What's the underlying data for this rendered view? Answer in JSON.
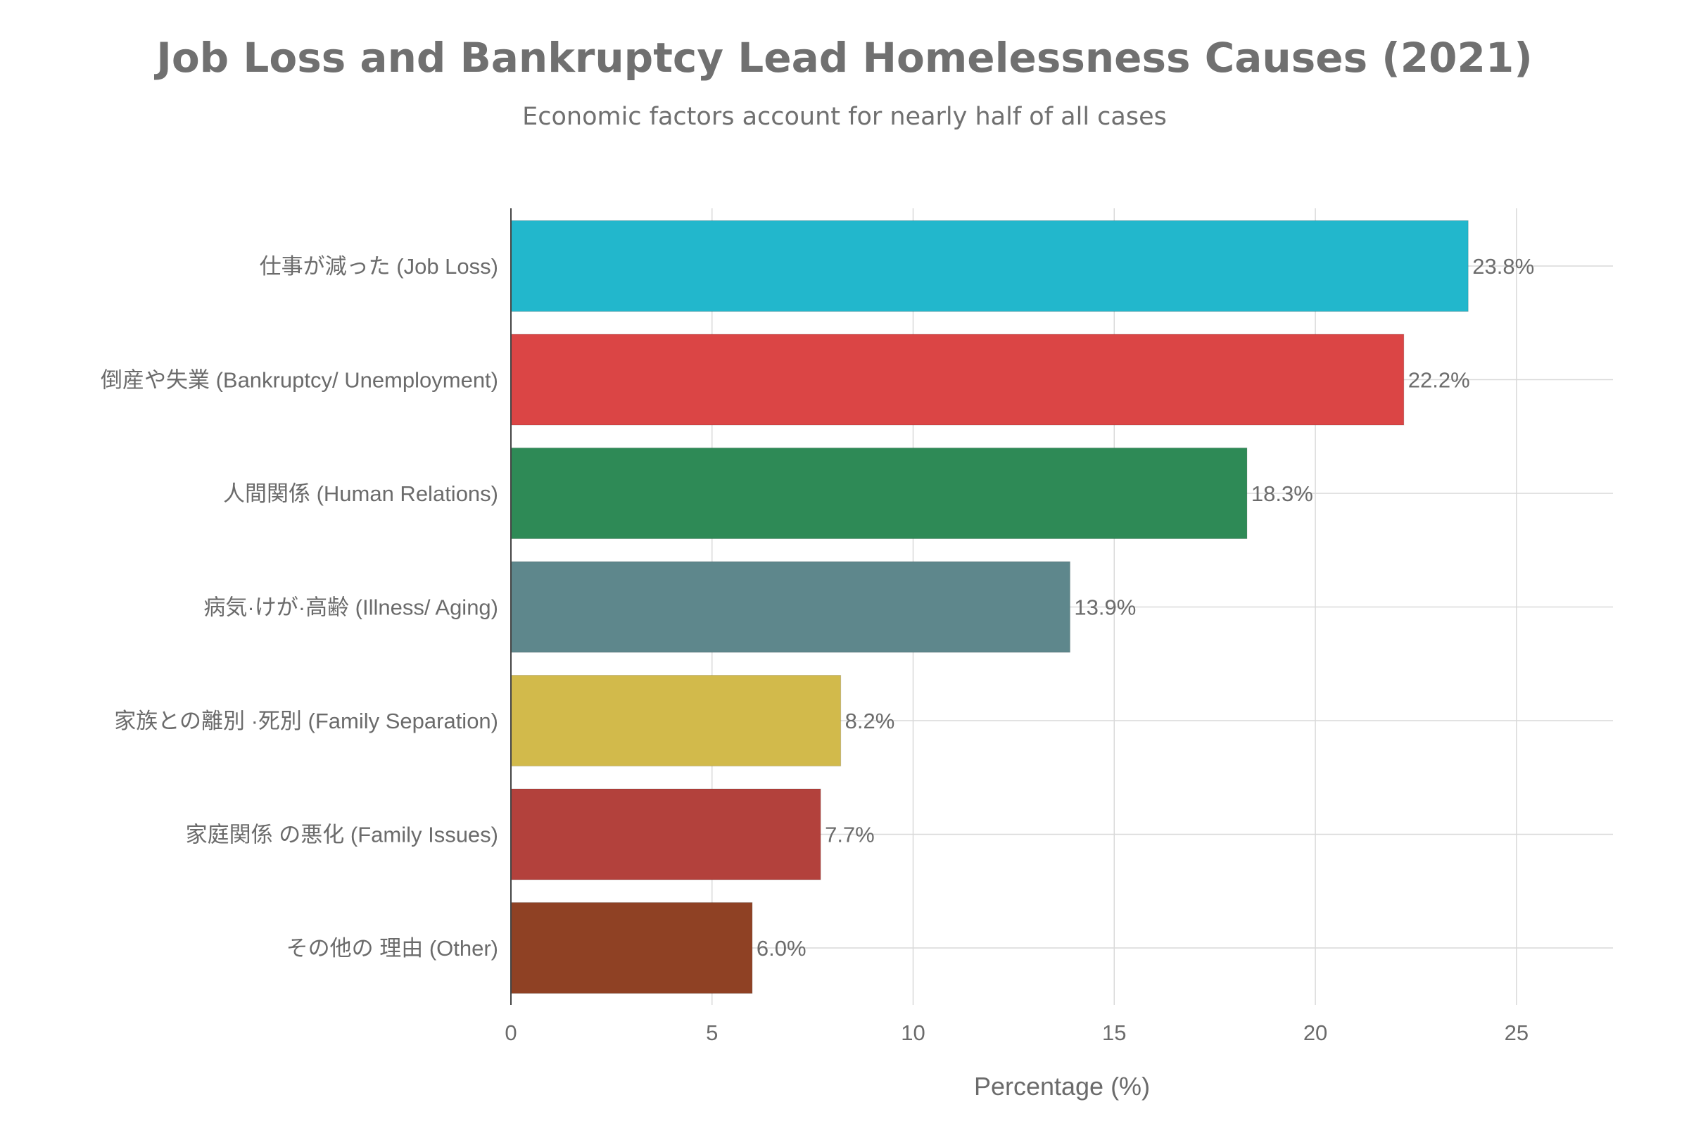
{
  "chart_data": {
    "type": "bar",
    "orientation": "horizontal",
    "title": "Job Loss and Bankruptcy Lead Homelessness Causes (2021)",
    "subtitle": "Economic factors account for nearly half of all cases",
    "xlabel": "Percentage (%)",
    "ylabel": "",
    "xlim": [
      0,
      27.4
    ],
    "xticks": [
      0,
      5,
      10,
      15,
      20,
      25
    ],
    "grid": true,
    "legend": "none",
    "value_suffix": "%",
    "categories": [
      "仕事が減った (Job Loss)",
      "倒産や失業 (Bankruptcy/ Unemployment)",
      "人間関係 (Human Relations)",
      "病気·けが·高齢 (Illness/ Aging)",
      "家族との離別 ·死別 (Family Separation)",
      "家庭関係 の悪化 (Family Issues)",
      "その他の 理由 (Other)"
    ],
    "values": [
      23.8,
      22.2,
      18.3,
      13.9,
      8.2,
      7.7,
      6.0
    ],
    "colors": [
      "#22b7cc",
      "#db4545",
      "#2e8a56",
      "#5e878c",
      "#d2ba4b",
      "#b3413c",
      "#8f4124"
    ]
  }
}
